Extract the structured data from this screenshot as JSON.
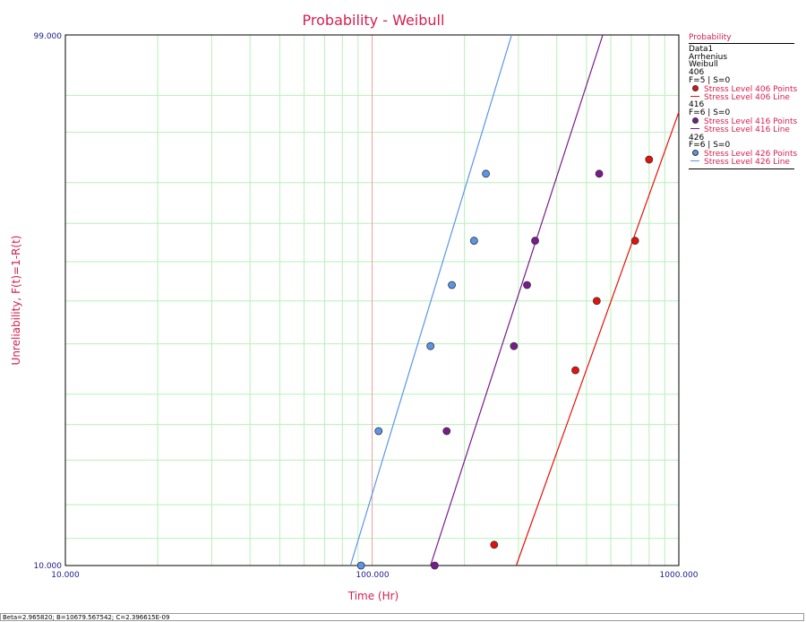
{
  "chart_data": {
    "type": "scatter",
    "title": "Probability - Weibull",
    "xlabel": "Time (Hr)",
    "ylabel": "Unreliability, F(t)=1-R(t)",
    "x_scale": "log",
    "y_scale": "weibull",
    "xlim": [
      10,
      1000
    ],
    "ylim": [
      10,
      99
    ],
    "x_tick_labels": [
      "10.000",
      "100.000",
      "1000.000"
    ],
    "y_tick_labels": [
      "10.000",
      "99.000"
    ],
    "grid": true,
    "legend_position": "right",
    "series": [
      {
        "name": "Stress Level 406 Points",
        "stress": "406",
        "color": "#e8100a",
        "points": [
          [
            250,
            11.5
          ],
          [
            460,
            34.5
          ],
          [
            540,
            50
          ],
          [
            720,
            65.5
          ],
          [
            800,
            85
          ]
        ],
        "line": [
          [
            295,
            10
          ],
          [
            1000,
            93
          ]
        ]
      },
      {
        "name": "Stress Level 416 Points",
        "stress": "416",
        "color": "#7a1a8e",
        "points": [
          [
            160,
            10
          ],
          [
            175,
            24
          ],
          [
            290,
            39.5
          ],
          [
            320,
            54
          ],
          [
            340,
            65.5
          ],
          [
            550,
            82
          ]
        ],
        "line": [
          [
            155,
            10
          ],
          [
            565,
            99
          ]
        ]
      },
      {
        "name": "Stress Level 426 Points",
        "stress": "426",
        "color": "#5b95e8",
        "points": [
          [
            92,
            10
          ],
          [
            105,
            24
          ],
          [
            155,
            39.5
          ],
          [
            182,
            54
          ],
          [
            215,
            65.5
          ],
          [
            235,
            82
          ]
        ],
        "line": [
          [
            85,
            10
          ],
          [
            285,
            99
          ]
        ]
      }
    ]
  },
  "legend": {
    "title": "Probability",
    "data_name": "Data1",
    "model": "Arrhenius",
    "distribution": "Weibull",
    "groups": [
      {
        "stress": "406",
        "counts": "F=5 | S=0",
        "points_label": "Stress Level 406 Points",
        "line_label": "Stress Level 406 Line",
        "color": "#e8100a"
      },
      {
        "stress": "416",
        "counts": "F=6 | S=0",
        "points_label": "Stress Level 416 Points",
        "line_label": "Stress Level 416 Line",
        "color": "#7a1a8e"
      },
      {
        "stress": "426",
        "counts": "F=6 | S=0",
        "points_label": "Stress Level 426 Points",
        "line_label": "Stress Level 426 Line",
        "color": "#5b95e8"
      }
    ]
  },
  "status": {
    "text": "Beta=2.965820; B=10679.567542; C=2.396615E-09"
  },
  "colors": {
    "title": "#d62050",
    "axis_text": "#1a1a8c",
    "grid": "#b8f0b8",
    "marker_line": "#f0a0a0"
  }
}
